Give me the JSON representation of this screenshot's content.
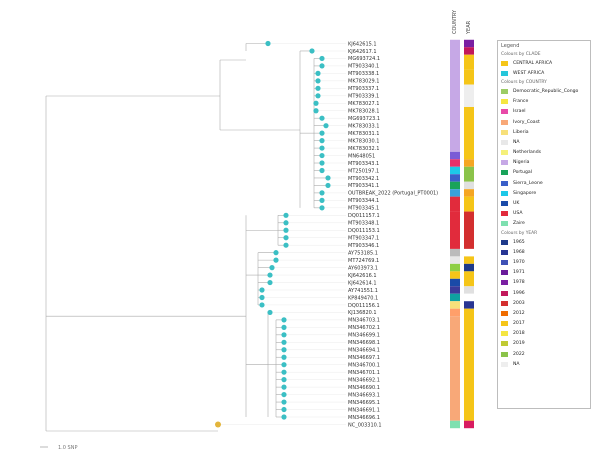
{
  "scale_label": "1.0 SNP",
  "columns": [
    "COUNTRY",
    "YEAR"
  ],
  "leaves": [
    {
      "label": "KJ642615.1"
    },
    {
      "label": "KJ642617.1"
    },
    {
      "label": "MG693724.1"
    },
    {
      "label": "MT903340.1"
    },
    {
      "label": "MT903338.1"
    },
    {
      "label": "MK783029.1"
    },
    {
      "label": "MT903337.1"
    },
    {
      "label": "MT903339.1"
    },
    {
      "label": "MK783027.1"
    },
    {
      "label": "MK783028.1"
    },
    {
      "label": "MG693723.1"
    },
    {
      "label": "MK783033.1"
    },
    {
      "label": "MK783031.1"
    },
    {
      "label": "MK783030.1"
    },
    {
      "label": "MK783032.1"
    },
    {
      "label": "MN648051"
    },
    {
      "label": "MT903343.1"
    },
    {
      "label": "MT250197.1"
    },
    {
      "label": "MT903342.1"
    },
    {
      "label": "MT903341.1"
    },
    {
      "label": "OUTBREAK_2022 (Portugal_PT0001)"
    },
    {
      "label": "MT903344.1"
    },
    {
      "label": "MT903345.1"
    },
    {
      "label": "DQ011157.1"
    },
    {
      "label": "MT903348.1"
    },
    {
      "label": "DQ011153.1"
    },
    {
      "label": "MT903347.1"
    },
    {
      "label": "MT903346.1"
    },
    {
      "label": "AY753185.1"
    },
    {
      "label": "MT724769.1"
    },
    {
      "label": "AY603973.1"
    },
    {
      "label": "KJ642616.1"
    },
    {
      "label": "KJ642614.1"
    },
    {
      "label": "AY741551.1"
    },
    {
      "label": "KP849470.1"
    },
    {
      "label": "DQ011156.1"
    },
    {
      "label": "KJ136820.1"
    },
    {
      "label": "MN346703.1"
    },
    {
      "label": "MN346702.1"
    },
    {
      "label": "MN346699.1"
    },
    {
      "label": "MN346698.1"
    },
    {
      "label": "MN346694.1"
    },
    {
      "label": "MN346697.1"
    },
    {
      "label": "MN346700.1"
    },
    {
      "label": "MN346701.1"
    },
    {
      "label": "MN346692.1"
    },
    {
      "label": "MN346690.1"
    },
    {
      "label": "MN346693.1"
    },
    {
      "label": "MN346695.1"
    },
    {
      "label": "MN346691.1"
    },
    {
      "label": "MN346696.1"
    },
    {
      "label": "NC_003310.1"
    }
  ],
  "country_blocks": [
    {
      "from": 0,
      "to": 14,
      "color": "#c6a8e6"
    },
    {
      "from": 15,
      "to": 15,
      "color": "#7b5bd6"
    },
    {
      "from": 16,
      "to": 16,
      "color": "#e8306a"
    },
    {
      "from": 17,
      "to": 17,
      "color": "#1dc8e8"
    },
    {
      "from": 18,
      "to": 18,
      "color": "#3a5fc8"
    },
    {
      "from": 19,
      "to": 19,
      "color": "#19a35a"
    },
    {
      "from": 20,
      "to": 20,
      "color": "#3aa0d8"
    },
    {
      "from": 21,
      "to": 22,
      "color": "#e12b3c"
    },
    {
      "from": 23,
      "to": 27,
      "color": "#e12b3c"
    },
    {
      "from": 28,
      "to": 28,
      "color": "#bbbbbb"
    },
    {
      "from": 29,
      "to": 29,
      "color": "#e8e8e8"
    },
    {
      "from": 30,
      "to": 30,
      "color": "#8ecf44"
    },
    {
      "from": 31,
      "to": 31,
      "color": "#f5c518"
    },
    {
      "from": 32,
      "to": 32,
      "color": "#1a4aa8"
    },
    {
      "from": 33,
      "to": 33,
      "color": "#3a3a9a"
    },
    {
      "from": 34,
      "to": 34,
      "color": "#0fa0a0"
    },
    {
      "from": 35,
      "to": 35,
      "color": "#f7e07a"
    },
    {
      "from": 36,
      "to": 36,
      "color": "#ff9f6a"
    },
    {
      "from": 37,
      "to": 50,
      "color": "#f8a878"
    },
    {
      "from": 51,
      "to": 51,
      "color": "#7ee0b0"
    }
  ],
  "year_blocks": [
    {
      "from": 0,
      "to": 0,
      "color": "#7a1fa2"
    },
    {
      "from": 1,
      "to": 1,
      "color": "#c2185b"
    },
    {
      "from": 2,
      "to": 3,
      "color": "#f5c518"
    },
    {
      "from": 4,
      "to": 5,
      "color": "#f5c518"
    },
    {
      "from": 6,
      "to": 8,
      "color": "#eeeeee"
    },
    {
      "from": 9,
      "to": 15,
      "color": "#f5c518"
    },
    {
      "from": 16,
      "to": 16,
      "color": "#f5a623"
    },
    {
      "from": 17,
      "to": 18,
      "color": "#8bc34a"
    },
    {
      "from": 19,
      "to": 19,
      "color": "#e0e0e0"
    },
    {
      "from": 20,
      "to": 20,
      "color": "#f5a623"
    },
    {
      "from": 21,
      "to": 22,
      "color": "#f5c518"
    },
    {
      "from": 23,
      "to": 27,
      "color": "#d32f2f"
    },
    {
      "from": 28,
      "to": 28,
      "color": "#ffffff"
    },
    {
      "from": 29,
      "to": 29,
      "color": "#f5c518"
    },
    {
      "from": 30,
      "to": 30,
      "color": "#1e3a8a"
    },
    {
      "from": 31,
      "to": 32,
      "color": "#f5c518"
    },
    {
      "from": 33,
      "to": 33,
      "color": "#e0e0e0"
    },
    {
      "from": 34,
      "to": 34,
      "color": "#ffffff"
    },
    {
      "from": 35,
      "to": 35,
      "color": "#283593"
    },
    {
      "from": 36,
      "to": 50,
      "color": "#f5c518"
    },
    {
      "from": 51,
      "to": 51,
      "color": "#d81b60"
    }
  ],
  "legend": {
    "title": "Legend",
    "sections": [
      {
        "heading": "Colours by CLADE",
        "items": [
          {
            "label": "CENTRAL AFRICA",
            "color": "#f5c518"
          },
          {
            "label": "WEST AFRICA",
            "color": "#26c6da"
          }
        ]
      },
      {
        "heading": "Colours by COUNTRY",
        "items": [
          {
            "label": "Democratic_Republic_Congo",
            "color": "#9ccc65"
          },
          {
            "label": "France",
            "color": "#f5e642"
          },
          {
            "label": "Israel",
            "color": "#e84aa8"
          },
          {
            "label": "Ivory_Coast",
            "color": "#f8a878"
          },
          {
            "label": "Liberia",
            "color": "#f7e07a"
          },
          {
            "label": "NA",
            "color": "#e8e8e8"
          },
          {
            "label": "Netherlands",
            "color": "#f5f07a"
          },
          {
            "label": "Nigeria",
            "color": "#c6a8e6"
          },
          {
            "label": "Portugal",
            "color": "#19a35a"
          },
          {
            "label": "Sierra_Leone",
            "color": "#3a5fc8"
          },
          {
            "label": "Singapore",
            "color": "#1dc8e8"
          },
          {
            "label": "UK",
            "color": "#1a4aa8"
          },
          {
            "label": "USA",
            "color": "#e12b3c"
          },
          {
            "label": "Zaire",
            "color": "#7ee0b0"
          }
        ]
      },
      {
        "heading": "Colours by YEAR",
        "items": [
          {
            "label": "1965",
            "color": "#1e3a8a"
          },
          {
            "label": "1968",
            "color": "#283593"
          },
          {
            "label": "1970",
            "color": "#3f51b5"
          },
          {
            "label": "1971",
            "color": "#6a1b9a"
          },
          {
            "label": "1978",
            "color": "#7a1fa2"
          },
          {
            "label": "1996",
            "color": "#c2185b"
          },
          {
            "label": "2003",
            "color": "#d32f2f"
          },
          {
            "label": "2012",
            "color": "#ef6c00"
          },
          {
            "label": "2017",
            "color": "#f5c518"
          },
          {
            "label": "2018",
            "color": "#f5e642"
          },
          {
            "label": "2019",
            "color": "#c0ca33"
          },
          {
            "label": "2022",
            "color": "#8bc34a"
          },
          {
            "label": "NA",
            "color": "#eeeeee"
          }
        ]
      }
    ]
  },
  "colors": {
    "tip": "#3bbfc4",
    "root": "#e3b53c",
    "branch": "#aaaaaa"
  }
}
